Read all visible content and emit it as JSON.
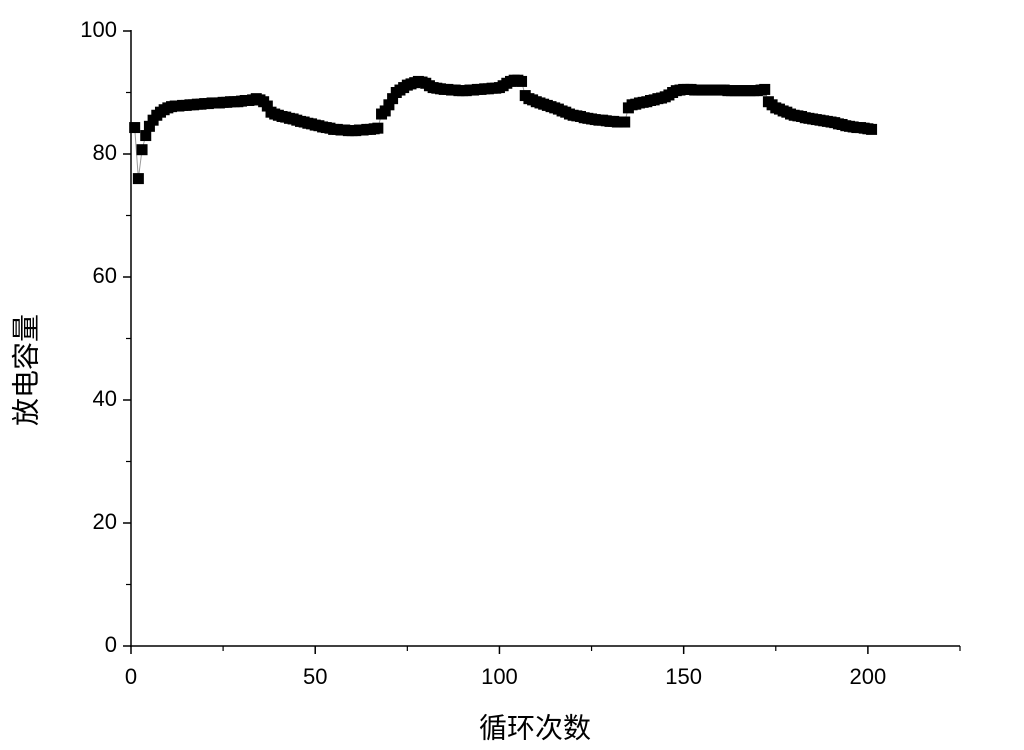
{
  "chart_data": {
    "type": "scatter-line",
    "xlabel": "循环次数",
    "ylabel": "放电容量",
    "xlim": [
      0,
      225
    ],
    "xticks": [
      0,
      50,
      100,
      150,
      200
    ],
    "x_minor_ticks": [
      25,
      75,
      125,
      175,
      225
    ],
    "ylim": [
      0,
      100
    ],
    "yticks": [
      0,
      20,
      40,
      60,
      80,
      100
    ],
    "y_minor_ticks": [
      10,
      30,
      50,
      70,
      90
    ],
    "marker": "square",
    "series": [
      {
        "color": "#000000",
        "x": [
          1,
          2,
          3,
          4,
          5,
          6,
          7,
          8,
          9,
          10,
          11,
          12,
          13,
          14,
          15,
          16,
          17,
          18,
          19,
          20,
          21,
          22,
          23,
          24,
          25,
          26,
          27,
          28,
          29,
          30,
          31,
          32,
          33,
          34,
          35,
          36,
          37,
          38,
          39,
          40,
          41,
          42,
          43,
          44,
          45,
          46,
          47,
          48,
          49,
          50,
          51,
          52,
          53,
          54,
          55,
          56,
          57,
          58,
          59,
          60,
          61,
          62,
          63,
          64,
          65,
          66,
          67,
          68,
          69,
          70,
          71,
          72,
          73,
          74,
          75,
          76,
          77,
          78,
          79,
          80,
          81,
          82,
          83,
          84,
          85,
          86,
          87,
          88,
          89,
          90,
          91,
          92,
          93,
          94,
          95,
          96,
          97,
          98,
          99,
          100,
          101,
          102,
          103,
          104,
          105,
          106,
          107,
          108,
          109,
          110,
          111,
          112,
          113,
          114,
          115,
          116,
          117,
          118,
          119,
          120,
          121,
          122,
          123,
          124,
          125,
          126,
          127,
          128,
          129,
          130,
          131,
          132,
          133,
          134,
          135,
          136,
          137,
          138,
          139,
          140,
          141,
          142,
          143,
          144,
          145,
          146,
          147,
          148,
          149,
          150,
          151,
          152,
          153,
          154,
          155,
          156,
          157,
          158,
          159,
          160,
          161,
          162,
          163,
          164,
          165,
          166,
          167,
          168,
          169,
          170,
          171,
          172,
          173,
          174,
          175,
          176,
          177,
          178,
          179,
          180,
          181,
          182,
          183,
          184,
          185,
          186,
          187,
          188,
          189,
          190,
          191,
          192,
          193,
          194,
          195,
          196,
          197,
          198,
          199,
          200,
          201
        ],
        "values": [
          84.3,
          76.0,
          80.7,
          83.0,
          84.5,
          85.5,
          86.3,
          86.8,
          87.2,
          87.5,
          87.7,
          87.8,
          87.8,
          87.9,
          87.9,
          88.0,
          88.0,
          88.1,
          88.1,
          88.2,
          88.2,
          88.3,
          88.3,
          88.3,
          88.4,
          88.4,
          88.5,
          88.5,
          88.5,
          88.6,
          88.7,
          88.7,
          88.8,
          89.0,
          88.8,
          88.5,
          87.8,
          86.8,
          86.5,
          86.3,
          86.1,
          86.0,
          85.8,
          85.7,
          85.5,
          85.3,
          85.2,
          85.0,
          84.9,
          84.7,
          84.6,
          84.4,
          84.3,
          84.2,
          84.0,
          84.0,
          83.9,
          83.9,
          83.8,
          83.8,
          83.8,
          83.9,
          83.9,
          84.0,
          84.0,
          84.1,
          84.2,
          86.5,
          87.0,
          88.0,
          89.0,
          90.0,
          90.4,
          90.8,
          91.2,
          91.4,
          91.6,
          91.8,
          91.7,
          91.5,
          91.1,
          90.8,
          90.7,
          90.6,
          90.5,
          90.5,
          90.4,
          90.4,
          90.3,
          90.3,
          90.3,
          90.4,
          90.4,
          90.5,
          90.5,
          90.6,
          90.6,
          90.7,
          90.7,
          90.8,
          91.1,
          91.5,
          91.8,
          92.0,
          92.0,
          91.8,
          89.5,
          89.0,
          88.8,
          88.5,
          88.3,
          88.1,
          87.9,
          87.7,
          87.5,
          87.3,
          87.0,
          86.8,
          86.5,
          86.3,
          86.2,
          86.1,
          85.9,
          85.8,
          85.7,
          85.6,
          85.5,
          85.5,
          85.4,
          85.3,
          85.3,
          85.2,
          85.2,
          85.2,
          87.5,
          88.0,
          88.1,
          88.3,
          88.4,
          88.5,
          88.7,
          88.8,
          89.0,
          89.1,
          89.3,
          89.6,
          90.0,
          90.3,
          90.4,
          90.5,
          90.5,
          90.5,
          90.4,
          90.4,
          90.4,
          90.4,
          90.4,
          90.4,
          90.4,
          90.4,
          90.4,
          90.3,
          90.3,
          90.3,
          90.3,
          90.3,
          90.3,
          90.3,
          90.3,
          90.3,
          90.4,
          90.5,
          88.5,
          88.0,
          87.5,
          87.3,
          87.0,
          86.8,
          86.5,
          86.3,
          86.2,
          86.1,
          85.9,
          85.8,
          85.7,
          85.6,
          85.5,
          85.4,
          85.3,
          85.2,
          85.1,
          84.9,
          84.8,
          84.6,
          84.5,
          84.4,
          84.3,
          84.3,
          84.2,
          84.1,
          84.0
        ]
      }
    ]
  }
}
